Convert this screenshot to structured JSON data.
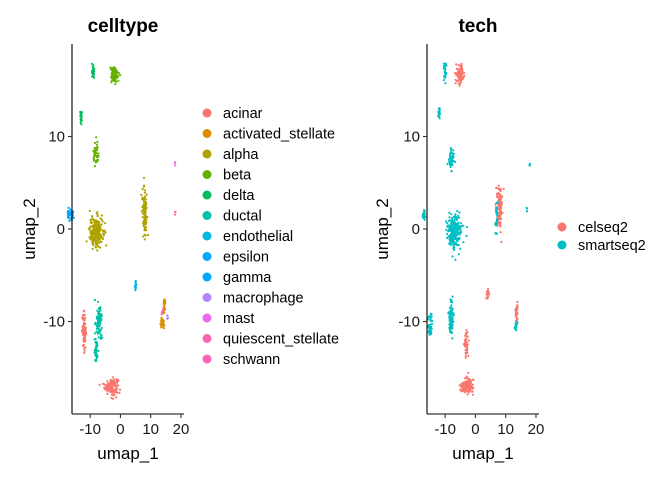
{
  "chart_data": [
    {
      "type": "scatter",
      "title": "celltype",
      "xlabel": "umap_1",
      "ylabel": "umap_2",
      "xlim": [
        -16,
        21
      ],
      "ylim": [
        -20,
        20
      ],
      "x_ticks": [
        -10,
        0,
        10,
        20
      ],
      "y_ticks": [
        -10,
        0,
        10
      ],
      "grid": false,
      "legend_position": "right",
      "series": [
        {
          "name": "acinar",
          "color": "#F8766D",
          "clusters": [
            [
              -3,
              -17,
              2.0,
              0.8,
              140
            ],
            [
              -12,
              -11,
              0.6,
              1.7,
              70
            ]
          ]
        },
        {
          "name": "activated_stellate",
          "color": "#DB8E00",
          "clusters": [
            [
              14.5,
              -8.3,
              0.4,
              0.6,
              25
            ],
            [
              13.8,
              -10.2,
              0.6,
              0.6,
              25
            ]
          ]
        },
        {
          "name": "alpha",
          "color": "#AEA200",
          "clusters": [
            [
              -8,
              -0.3,
              2.0,
              1.5,
              240
            ],
            [
              8,
              2.0,
              0.7,
              2.3,
              110
            ]
          ]
        },
        {
          "name": "beta",
          "color": "#64B200",
          "clusters": [
            [
              -2,
              16.7,
              1.3,
              0.9,
              90
            ],
            [
              -8,
              8.0,
              0.8,
              1.1,
              45
            ]
          ]
        },
        {
          "name": "delta",
          "color": "#00BD5C",
          "clusters": [
            [
              -9,
              16.9,
              0.4,
              0.8,
              30
            ],
            [
              -13,
              12.0,
              0.3,
              0.7,
              20
            ]
          ]
        },
        {
          "name": "ductal",
          "color": "#00C1A7",
          "clusters": [
            [
              -7,
              -10.0,
              0.8,
              1.6,
              90
            ],
            [
              -8,
              -13.2,
              0.5,
              1.2,
              45
            ]
          ]
        },
        {
          "name": "endothelial",
          "color": "#00BADE",
          "clusters": [
            [
              5,
              -6.0,
              0.3,
              0.5,
              14
            ]
          ]
        },
        {
          "name": "epsilon",
          "color": "#00A6FF",
          "clusters": [
            [
              -17,
              1.5,
              0.5,
              0.6,
              25
            ]
          ]
        },
        {
          "name": "gamma",
          "color": "#00A6FF",
          "clusters": [
            [
              -16,
              1.5,
              0.5,
              0.5,
              18
            ]
          ]
        },
        {
          "name": "macrophage",
          "color": "#B385FF",
          "clusters": [
            [
              15.5,
              -9.5,
              0.2,
              0.2,
              4
            ]
          ]
        },
        {
          "name": "mast",
          "color": "#EF67EB",
          "clusters": [
            [
              18,
              7.0,
              0.2,
              0.2,
              3
            ]
          ]
        },
        {
          "name": "quiescent_stellate",
          "color": "#FF63B6",
          "clusters": [
            [
              14,
              -8.8,
              0.3,
              0.4,
              8
            ]
          ]
        },
        {
          "name": "schwann",
          "color": "#FF63B6",
          "clusters": [
            [
              18,
              1.8,
              0.2,
              0.3,
              3
            ]
          ]
        }
      ]
    },
    {
      "type": "scatter",
      "title": "tech",
      "xlabel": "umap_1",
      "ylabel": "umap_2",
      "xlim": [
        -16,
        21
      ],
      "ylim": [
        -20,
        20
      ],
      "x_ticks": [
        -10,
        0,
        10,
        20
      ],
      "y_ticks": [
        -10,
        0,
        10
      ],
      "grid": false,
      "legend_position": "right",
      "series": [
        {
          "name": "celseq2",
          "color": "#F8766D",
          "clusters": [
            [
              -5,
              16.7,
              1.3,
              0.9,
              80
            ],
            [
              8,
              2.5,
              0.8,
              2.0,
              110
            ],
            [
              4,
              -7.0,
              0.4,
              0.6,
              20
            ],
            [
              -3,
              -17,
              2.0,
              0.8,
              130
            ],
            [
              -3,
              -12.5,
              0.6,
              1.4,
              45
            ],
            [
              13.5,
              -9.0,
              0.5,
              0.8,
              30
            ]
          ]
        },
        {
          "name": "smartseq2",
          "color": "#00BFC4",
          "clusters": [
            [
              -10,
              16.8,
              0.5,
              0.9,
              25
            ],
            [
              -12,
              12.5,
              0.3,
              0.7,
              20
            ],
            [
              -8,
              7.5,
              0.8,
              1.3,
              50
            ],
            [
              -7,
              -0.3,
              2.0,
              1.5,
              240
            ],
            [
              -17,
              1.5,
              0.5,
              0.6,
              25
            ],
            [
              -15,
              -10.5,
              0.6,
              1.3,
              45
            ],
            [
              -8,
              -9.5,
              0.7,
              1.5,
              80
            ],
            [
              7,
              1.5,
              0.4,
              1.5,
              30
            ],
            [
              13.5,
              -10.5,
              0.4,
              0.6,
              15
            ],
            [
              18,
              7.0,
              0.2,
              0.2,
              3
            ],
            [
              17,
              2.0,
              0.2,
              0.3,
              4
            ]
          ]
        }
      ]
    }
  ]
}
